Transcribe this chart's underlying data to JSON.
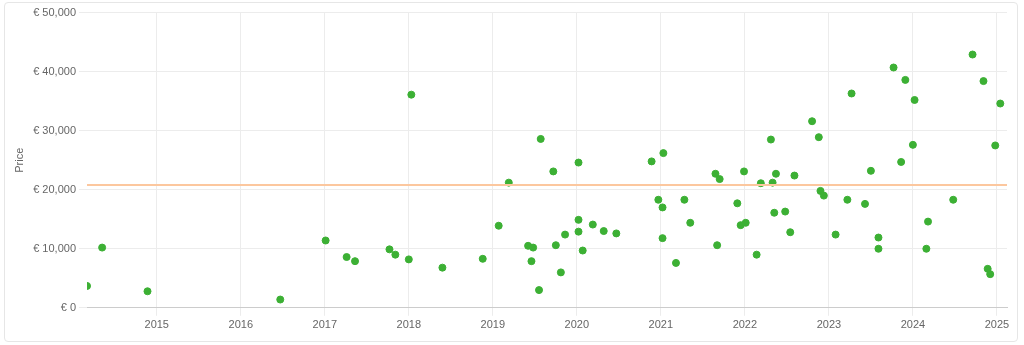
{
  "chart_data": {
    "type": "scatter",
    "ylabel": "Price",
    "marker": "circle",
    "grid": true,
    "legend": false,
    "xlim": [
      2014.17,
      2025.12
    ],
    "xticks": [
      2015,
      2016,
      2017,
      2018,
      2019,
      2020,
      2021,
      2022,
      2023,
      2024,
      2025
    ],
    "ylim": [
      0,
      50000
    ],
    "yticks": [
      {
        "value": 0,
        "label": "€ 0"
      },
      {
        "value": 10000,
        "label": "€ 10,000"
      },
      {
        "value": 20000,
        "label": "€ 20,000"
      },
      {
        "value": 30000,
        "label": "€ 30,000"
      },
      {
        "value": 40000,
        "label": "€ 40,000"
      },
      {
        "value": 50000,
        "label": "€ 50,000"
      }
    ],
    "ref_lines": [
      {
        "axis": "y",
        "value": 20800,
        "color": "#fcc79e"
      }
    ],
    "series": [
      {
        "color": "#3cb034",
        "x": [
          2014.17,
          2014.35,
          2014.89,
          2016.47,
          2017.01,
          2017.26,
          2017.36,
          2017.77,
          2017.84,
          2018.0,
          2018.03,
          2018.4,
          2018.88,
          2019.07,
          2019.19,
          2019.42,
          2019.48,
          2019.46,
          2019.55,
          2019.57,
          2019.72,
          2019.75,
          2019.81,
          2019.86,
          2020.02,
          2020.02,
          2020.02,
          2020.07,
          2020.19,
          2020.32,
          2020.47,
          2020.89,
          2020.97,
          2021.02,
          2021.02,
          2021.03,
          2021.18,
          2021.28,
          2021.35,
          2021.65,
          2021.67,
          2021.7,
          2021.91,
          2021.95,
          2021.99,
          2022.01,
          2022.14,
          2022.19,
          2022.31,
          2022.33,
          2022.35,
          2022.37,
          2022.48,
          2022.54,
          2022.59,
          2022.8,
          2022.88,
          2022.9,
          2022.94,
          2023.08,
          2023.22,
          2023.27,
          2023.43,
          2023.5,
          2023.59,
          2023.59,
          2023.77,
          2023.86,
          2023.91,
          2024.0,
          2024.02,
          2024.16,
          2024.18,
          2024.48,
          2024.71,
          2024.84,
          2024.89,
          2024.92,
          2024.98,
          2025.04
        ],
        "values": [
          3700,
          10200,
          2800,
          1400,
          11400,
          8600,
          7900,
          9900,
          9000,
          8200,
          36100,
          6800,
          8300,
          13900,
          21200,
          10500,
          10200,
          7900,
          3000,
          28600,
          23100,
          10600,
          6000,
          12400,
          24600,
          14900,
          12900,
          9700,
          14100,
          13000,
          12600,
          24800,
          18300,
          17000,
          11800,
          26200,
          7600,
          18300,
          14400,
          22700,
          10600,
          21800,
          17700,
          14000,
          23100,
          14400,
          9000,
          21100,
          28500,
          21200,
          16100,
          22700,
          16300,
          12800,
          22400,
          31600,
          28900,
          19800,
          19000,
          12400,
          18300,
          36300,
          17600,
          23200,
          11900,
          10000,
          40700,
          24700,
          38600,
          27600,
          35200,
          10000,
          14600,
          18300,
          42900,
          38400,
          6600,
          5700,
          27500,
          34600
        ]
      }
    ]
  }
}
